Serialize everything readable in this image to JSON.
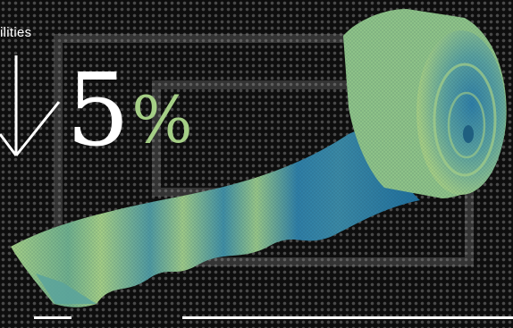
{
  "headline": {
    "label_fragment": "ilities",
    "arrow_icon": "down-arrow-icon",
    "value": "5",
    "unit": "%"
  },
  "illustration": {
    "subject": "bandage-roll-icon",
    "colors": {
      "green": "#a5cf86",
      "blue": "#2e7fa8",
      "background": "#0e0e0e",
      "rules": "#ffffff"
    }
  }
}
